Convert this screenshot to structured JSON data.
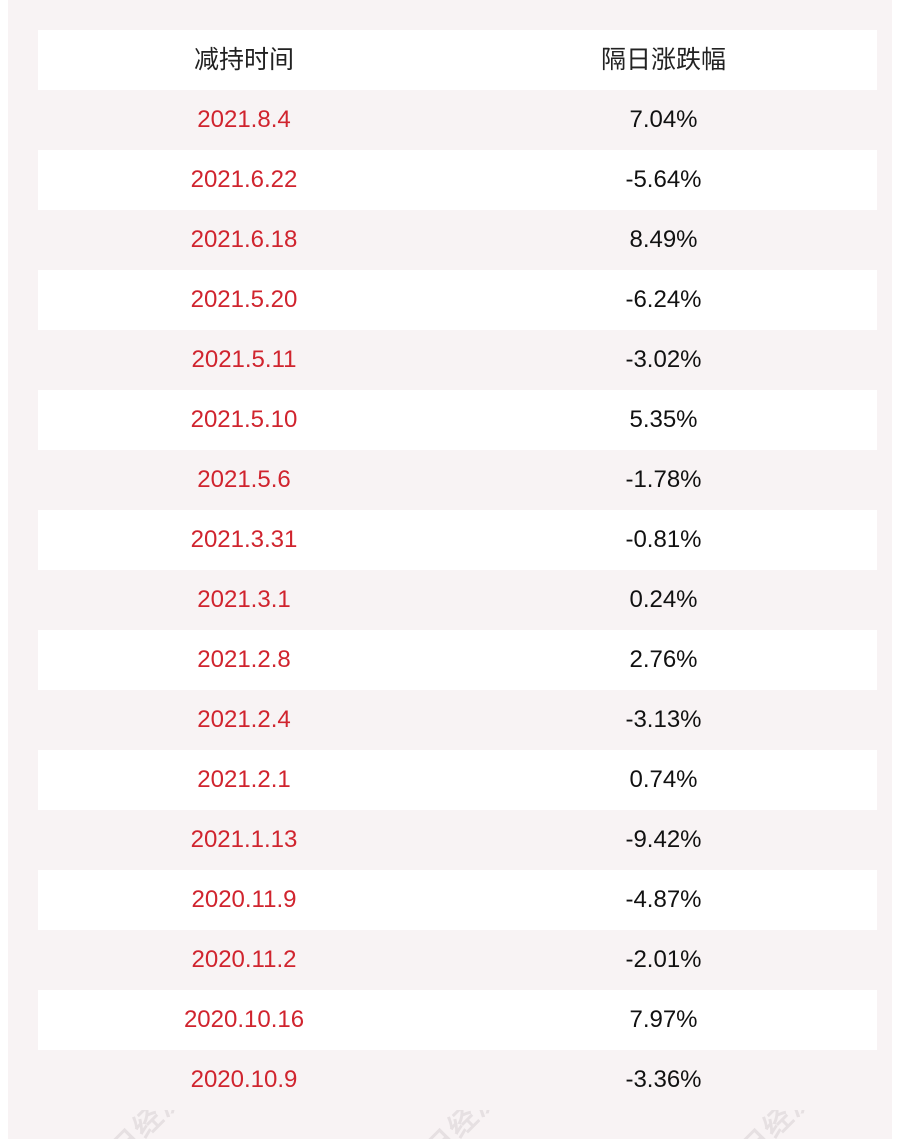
{
  "table": {
    "headers": [
      "减持时间",
      "隔日涨跌幅"
    ],
    "rows": [
      {
        "date": "2021.8.4",
        "change": "7.04%"
      },
      {
        "date": "2021.6.22",
        "change": "-5.64%"
      },
      {
        "date": "2021.6.18",
        "change": "8.49%"
      },
      {
        "date": "2021.5.20",
        "change": "-6.24%"
      },
      {
        "date": "2021.5.11",
        "change": "-3.02%"
      },
      {
        "date": "2021.5.10",
        "change": "5.35%"
      },
      {
        "date": "2021.5.6",
        "change": "-1.78%"
      },
      {
        "date": "2021.3.31",
        "change": "-0.81%"
      },
      {
        "date": "2021.3.1",
        "change": "0.24%"
      },
      {
        "date": "2021.2.8",
        "change": "2.76%"
      },
      {
        "date": "2021.2.4",
        "change": "-3.13%"
      },
      {
        "date": "2021.2.1",
        "change": "0.74%"
      },
      {
        "date": "2021.1.13",
        "change": "-9.42%"
      },
      {
        "date": "2020.11.9",
        "change": "-4.87%"
      },
      {
        "date": "2020.11.2",
        "change": "-2.01%"
      },
      {
        "date": "2020.10.16",
        "change": "7.97%"
      },
      {
        "date": "2020.10.9",
        "change": "-3.36%"
      }
    ]
  },
  "watermark": {
    "text": "每日经济新闻"
  },
  "colors": {
    "date_text": "#d0242e",
    "value_text": "#111111",
    "panel_background": "#f8f3f4",
    "header_background": "#ffffff"
  }
}
